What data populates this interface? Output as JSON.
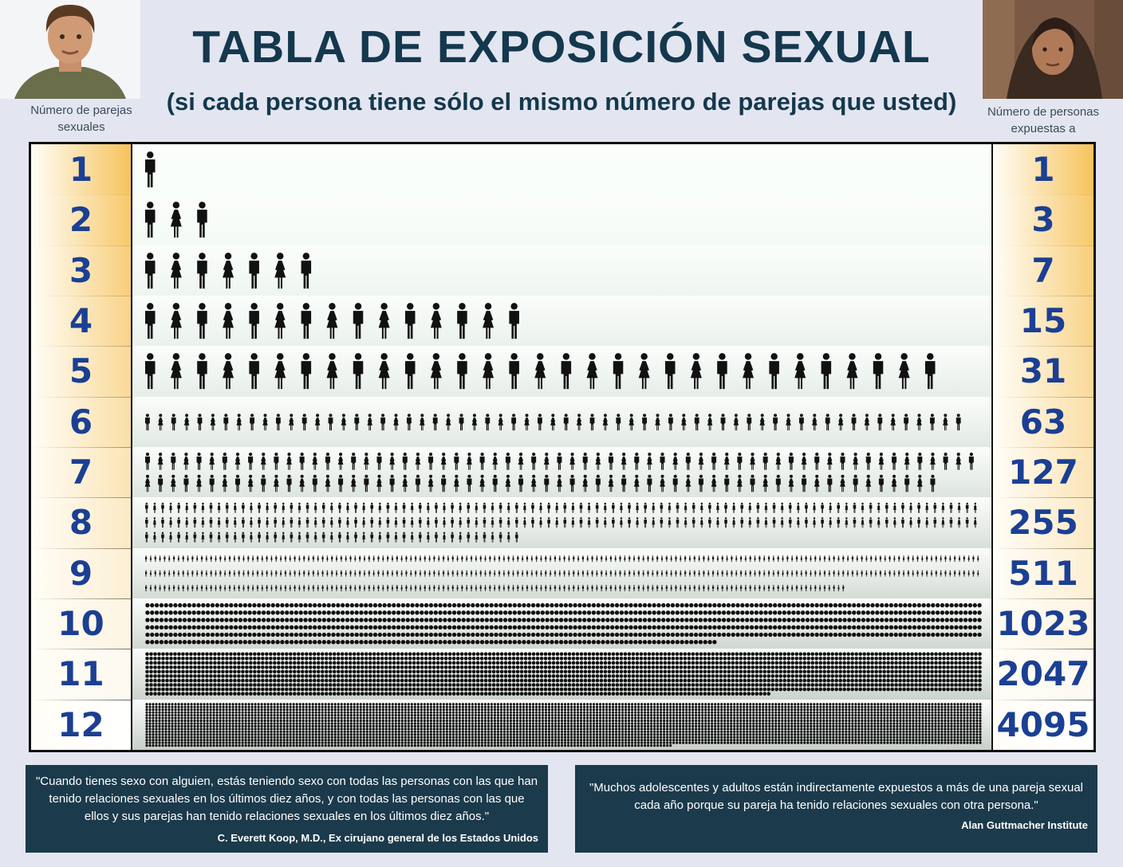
{
  "title": "TABLA DE EXPOSICIÓN SEXUAL",
  "subtitle": "(si cada persona tiene sólo el mismo número de parejas que usted)",
  "left_label": "Número de parejas sexuales",
  "right_label": "Número de personas expuestas a",
  "colors": {
    "title": "#14384e",
    "number": "#1b3f93",
    "gold": "#f6c35c",
    "green": "#cfe6d3",
    "quote_bg": "#1b3a4b"
  },
  "chart_data": {
    "type": "table",
    "columns": [
      "Número de parejas sexuales",
      "Número de personas expuestas a"
    ],
    "rows": [
      {
        "partners": "1",
        "exposed": "1"
      },
      {
        "partners": "2",
        "exposed": "3"
      },
      {
        "partners": "3",
        "exposed": "7"
      },
      {
        "partners": "4",
        "exposed": "15"
      },
      {
        "partners": "5",
        "exposed": "31"
      },
      {
        "partners": "6",
        "exposed": "63"
      },
      {
        "partners": "7",
        "exposed": "127"
      },
      {
        "partners": "8",
        "exposed": "255"
      },
      {
        "partners": "9",
        "exposed": "511"
      },
      {
        "partners": "10",
        "exposed": "1023"
      },
      {
        "partners": "11",
        "exposed": "2047"
      },
      {
        "partners": "12",
        "exposed": "4095"
      }
    ]
  },
  "quotes": [
    {
      "text": "\"Cuando tienes sexo con alguien, estás teniendo sexo con todas las personas con las que han tenido relaciones sexuales en los últimos diez años, y con todas las personas con las que ellos y sus parejas han tenido relaciones sexuales en los últimos diez años.\"",
      "author": "C. Everett Koop, M.D., Ex cirujano general de los Estados Unidos"
    },
    {
      "text": "\"Muchos adolescentes y adultos están indirectamente expuestos a más de una pareja sexual cada año porque su pareja ha tenido relaciones sexuales con otra persona.\"",
      "author": "Alan Guttmacher Institute"
    }
  ]
}
